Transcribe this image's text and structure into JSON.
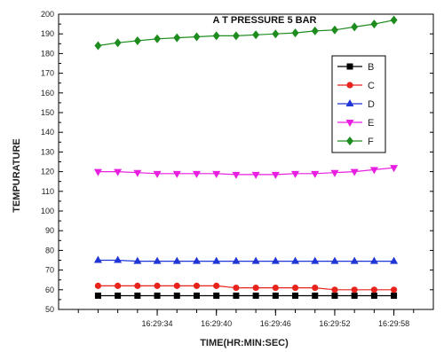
{
  "chart_data": {
    "type": "line",
    "title": "A T PRESSURE 5 BAR",
    "xlabel": "TIME(HR:MIN:SEC)",
    "ylabel": "TEMPURATURE",
    "ylim": [
      50,
      200
    ],
    "y_ticks": [
      50,
      60,
      70,
      80,
      90,
      100,
      110,
      120,
      130,
      140,
      150,
      160,
      170,
      180,
      190,
      200
    ],
    "x_tick_labels": [
      "16:29:34",
      "16:29:40",
      "16:29:46",
      "16:29:52",
      "16:29:58"
    ],
    "x_tick_seconds": [
      34,
      40,
      46,
      52,
      58
    ],
    "xlim": [
      24,
      62
    ],
    "x": [
      28,
      30,
      32,
      34,
      36,
      38,
      40,
      42,
      44,
      46,
      48,
      50,
      52,
      54,
      56,
      58
    ],
    "series": [
      {
        "name": "B",
        "color": "#000000",
        "marker": "square",
        "values": [
          57,
          57,
          57,
          57,
          57,
          57,
          57,
          57,
          57,
          57,
          57,
          57,
          57,
          57,
          57,
          57
        ]
      },
      {
        "name": "C",
        "color": "#e8231c",
        "marker": "circle",
        "values": [
          62,
          62,
          62,
          62,
          62,
          62,
          62,
          61,
          61,
          61,
          61,
          61,
          60,
          60,
          60,
          60
        ]
      },
      {
        "name": "D",
        "color": "#1f35d6",
        "marker": "triangle-up",
        "values": [
          75,
          75,
          74.5,
          74.5,
          74.5,
          74.5,
          74.5,
          74.5,
          74.5,
          74.5,
          74.5,
          74.5,
          74.5,
          74.5,
          74.5,
          74.5
        ]
      },
      {
        "name": "E",
        "color": "#e81ee0",
        "marker": "triangle-down",
        "values": [
          120,
          120,
          119.5,
          119,
          119,
          119,
          119,
          118.5,
          118.5,
          118.5,
          119,
          119,
          119.5,
          120,
          121,
          122
        ]
      },
      {
        "name": "F",
        "color": "#1e8c1e",
        "marker": "diamond",
        "values": [
          184,
          185.5,
          186.5,
          187.5,
          188,
          188.5,
          189,
          189,
          189.5,
          190,
          190.5,
          191.5,
          192,
          193.5,
          195,
          197
        ]
      }
    ],
    "legend_position": "top-right",
    "grid": false
  }
}
